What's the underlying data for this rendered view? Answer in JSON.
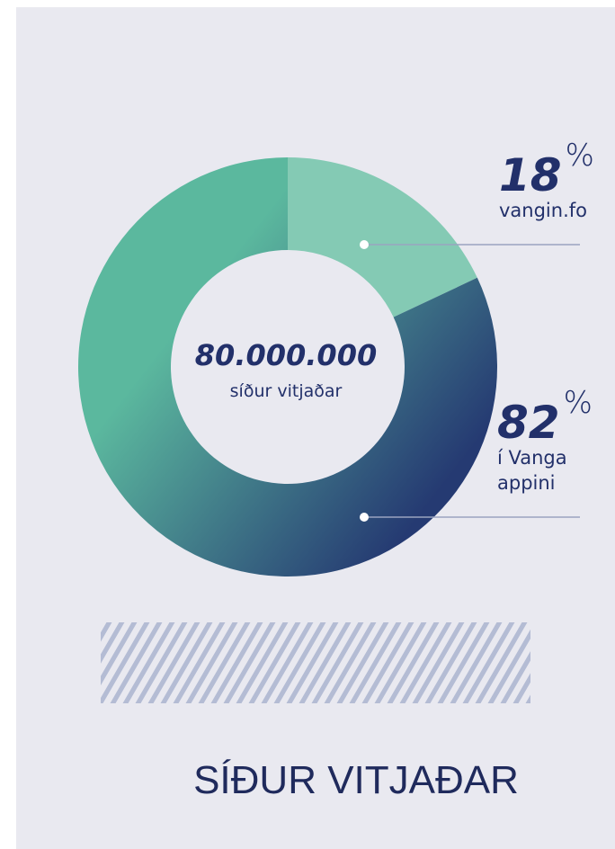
{
  "chart_data": {
    "type": "donut",
    "title": "SÍÐUR VITJAÐAR",
    "center_label": "80.000.000",
    "center_sublabel": "síður vitjaðar",
    "categories": [
      "vangin.fo",
      "í Vanga appini"
    ],
    "values": [
      18,
      82
    ],
    "unit": "%",
    "colors": [
      "#84cab4",
      "#253a72"
    ],
    "gradient_to": "#5bb89e"
  }
}
